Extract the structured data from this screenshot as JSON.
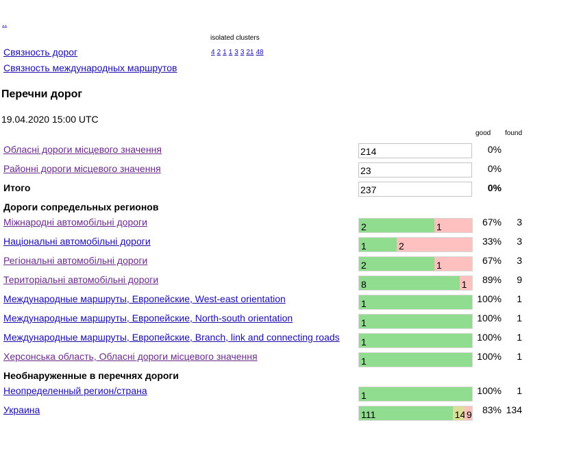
{
  "nav": {
    "parent_link": "..",
    "road_connectivity": "Связность дорог",
    "intl_routes_connectivity": "Связность международных маршрутов"
  },
  "isolated_clusters": {
    "label": "isolated clusters",
    "links": [
      "4",
      "2",
      "1",
      "1",
      "3",
      "3",
      "21",
      "48"
    ]
  },
  "page": {
    "title": "Перечни дорог",
    "timestamp": "19.04.2020 15:00 UTC"
  },
  "columns": {
    "good": "good",
    "found": "found"
  },
  "local_rows": [
    {
      "label": "Обласні дороги місцевого значення",
      "value": "214",
      "pct": "0%",
      "visited": true
    },
    {
      "label": "Районні дороги місцевого значення",
      "value": "23",
      "pct": "0%",
      "visited": true
    }
  ],
  "total_row": {
    "label": "Итого",
    "value": "237",
    "pct": "0%"
  },
  "neighbor_section": {
    "title": "Дороги сопредельных регионов",
    "rows": [
      {
        "label": "Міжнародні автомобільні дороги",
        "good": 2,
        "partial": 0,
        "bad": 1,
        "good_label": "2",
        "partial_label": "",
        "bad_label": "1",
        "pct": "67%",
        "found": "3",
        "visited": true
      },
      {
        "label": "Національні автомобільні дороги",
        "good": 1,
        "partial": 0,
        "bad": 2,
        "good_label": "1",
        "partial_label": "",
        "bad_label": "2",
        "pct": "33%",
        "found": "3",
        "visited": false
      },
      {
        "label": "Регіональні автомобільні дороги",
        "good": 2,
        "partial": 0,
        "bad": 1,
        "good_label": "2",
        "partial_label": "",
        "bad_label": "1",
        "pct": "67%",
        "found": "3",
        "visited": true
      },
      {
        "label": "Територіальні автомобільні дороги",
        "good": 8,
        "partial": 0,
        "bad": 1,
        "good_label": "8",
        "partial_label": "",
        "bad_label": "1",
        "pct": "89%",
        "found": "9",
        "visited": true
      },
      {
        "label": "Международные маршруты, Европейские, West-east orientation",
        "good": 1,
        "partial": 0,
        "bad": 0,
        "good_label": "1",
        "partial_label": "",
        "bad_label": "",
        "pct": "100%",
        "found": "1",
        "visited": false
      },
      {
        "label": "Международные маршруты, Европейские, North-south orientation",
        "good": 1,
        "partial": 0,
        "bad": 0,
        "good_label": "1",
        "partial_label": "",
        "bad_label": "",
        "pct": "100%",
        "found": "1",
        "visited": false
      },
      {
        "label": "Международные маршруты, Европейские, Branch, link and connecting roads",
        "good": 1,
        "partial": 0,
        "bad": 0,
        "good_label": "1",
        "partial_label": "",
        "bad_label": "",
        "pct": "100%",
        "found": "1",
        "visited": false
      },
      {
        "label": "Херсонська область, Обласні дороги місцевого значення",
        "good": 1,
        "partial": 0,
        "bad": 0,
        "good_label": "1",
        "partial_label": "",
        "bad_label": "",
        "pct": "100%",
        "found": "1",
        "visited": true
      }
    ]
  },
  "undetected_section": {
    "title": "Необнаруженные в перечнях дороги",
    "rows": [
      {
        "label": "Неопределенный регион/страна",
        "good": 1,
        "partial": 0,
        "bad": 0,
        "good_label": "1",
        "partial_label": "",
        "bad_label": "",
        "pct": "100%",
        "found": "1",
        "visited": false
      },
      {
        "label": "Украина",
        "good": 111,
        "partial": 14,
        "bad": 9,
        "good_label": "111",
        "partial_label": "14",
        "bad_label": "9",
        "pct": "83%",
        "found": "134",
        "visited": false
      }
    ]
  },
  "colors": {
    "good": "#90dd8f",
    "partial": "#ddde99",
    "bad": "#ffc0c0",
    "link": "#1a0dab",
    "visited": "#6a2a8a"
  }
}
